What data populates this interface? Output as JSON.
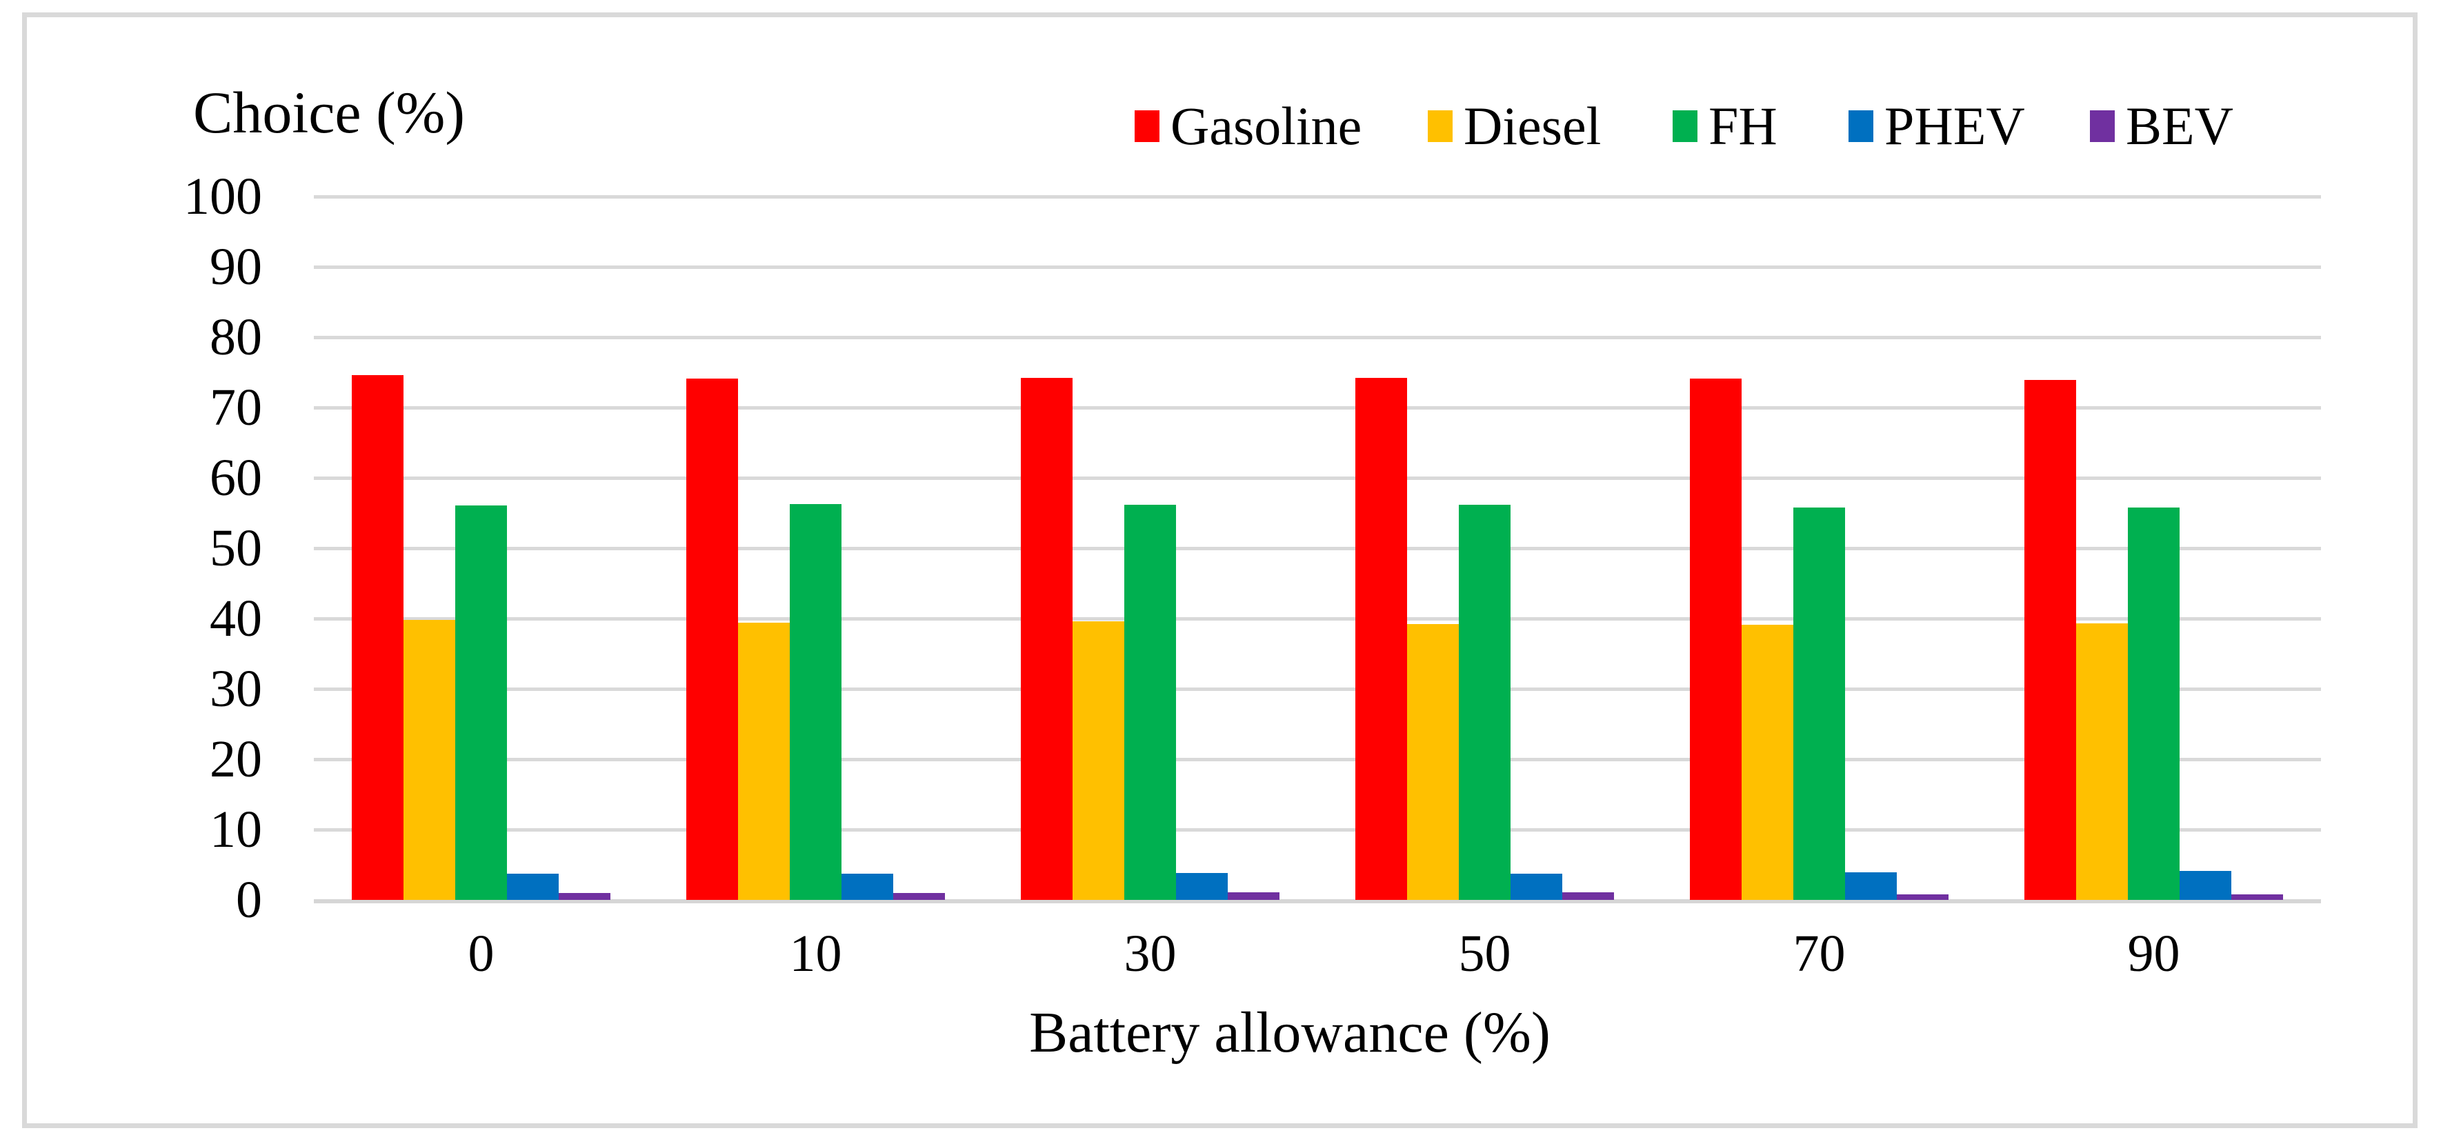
{
  "chart_data": {
    "type": "bar",
    "title": "Choice (%)",
    "xlabel": "Battery allowance (%)",
    "ylabel": "Choice (%)",
    "categories": [
      "0",
      "10",
      "30",
      "50",
      "70",
      "90"
    ],
    "series": [
      {
        "name": "Gasoline",
        "color": "#FF0000",
        "values": [
          74.6,
          74.1,
          74.2,
          74.2,
          74.1,
          73.9
        ]
      },
      {
        "name": "Diesel",
        "color": "#FFC000",
        "values": [
          39.8,
          39.4,
          39.6,
          39.2,
          39.1,
          39.3
        ]
      },
      {
        "name": "FH",
        "color": "#00B050",
        "values": [
          56.1,
          56.3,
          56.2,
          56.2,
          55.8,
          55.8
        ]
      },
      {
        "name": "PHEV",
        "color": "#0070C0",
        "values": [
          3.7,
          3.7,
          3.8,
          3.7,
          3.9,
          4.1
        ]
      },
      {
        "name": "BEV",
        "color": "#7030A0",
        "values": [
          1.0,
          1.0,
          1.1,
          1.1,
          0.8,
          0.8
        ]
      }
    ],
    "ylim": [
      0,
      100
    ],
    "yticks": [
      0,
      10,
      20,
      30,
      40,
      50,
      60,
      70,
      80,
      90,
      100
    ],
    "grid": true,
    "legend_position": "top",
    "gridline_color": "#d9d9d9",
    "border_color": "#d9d9d9",
    "background_color": "#ffffff"
  }
}
